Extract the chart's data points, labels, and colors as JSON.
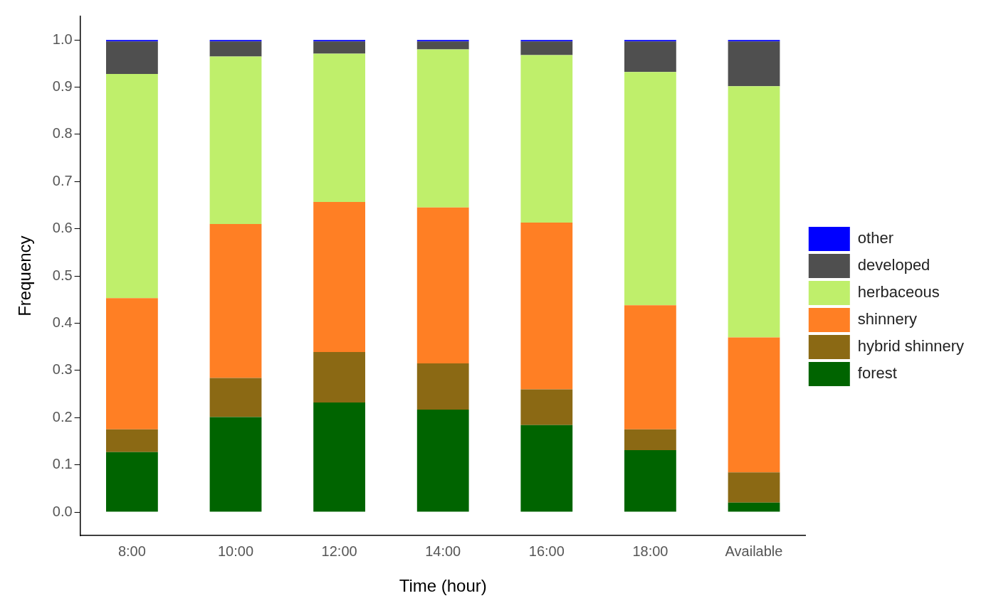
{
  "chart_data": {
    "type": "bar",
    "stacked": true,
    "xlabel": "Time (hour)",
    "ylabel": "Frequency",
    "categories": [
      "8:00",
      "10:00",
      "12:00",
      "14:00",
      "16:00",
      "18:00",
      "Available"
    ],
    "series": [
      {
        "name": "forest",
        "color": "#006400",
        "values": [
          0.127,
          0.201,
          0.232,
          0.217,
          0.184,
          0.131,
          0.02
        ]
      },
      {
        "name": "hybrid shinnery",
        "color": "#8b6914",
        "values": [
          0.048,
          0.083,
          0.107,
          0.098,
          0.076,
          0.044,
          0.064
        ]
      },
      {
        "name": "shinnery",
        "color": "#ff7f24",
        "values": [
          0.278,
          0.326,
          0.318,
          0.33,
          0.353,
          0.263,
          0.286
        ]
      },
      {
        "name": "herbaceous",
        "color": "#bfef6b",
        "values": [
          0.475,
          0.355,
          0.314,
          0.335,
          0.355,
          0.494,
          0.532
        ]
      },
      {
        "name": "developed",
        "color": "#4f4f4f",
        "values": [
          0.069,
          0.032,
          0.026,
          0.017,
          0.029,
          0.065,
          0.095
        ]
      },
      {
        "name": "other",
        "color": "#0000ff",
        "values": [
          0.003,
          0.003,
          0.003,
          0.003,
          0.003,
          0.003,
          0.003
        ]
      }
    ],
    "ylim": [
      -0.05,
      1.05
    ],
    "yticks": [
      {
        "value": 0,
        "label": "0.0"
      },
      0.1,
      0.2,
      0.3,
      0.4,
      0.5,
      0.6,
      0.7,
      0.8,
      0.9,
      {
        "value": 1,
        "label": "1.0"
      }
    ],
    "grid": false,
    "legend": "right"
  }
}
